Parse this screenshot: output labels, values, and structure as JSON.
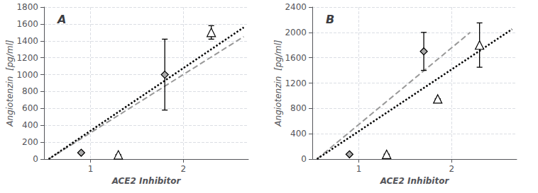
{
  "chart_data": [
    {
      "type": "scatter",
      "annotation": "A",
      "xlabel": "ACE2 Inhibitor",
      "ylabel": "Angiotenzin  [pg/ml]",
      "xlim": [
        0.5,
        2.7
      ],
      "xticks": [
        1,
        2
      ],
      "ylim": [
        0,
        1800
      ],
      "yticks": [
        0,
        200,
        400,
        600,
        800,
        1000,
        1200,
        1400,
        1600,
        1800
      ],
      "grid": true,
      "series": [
        {
          "type": "line",
          "color": "#999999",
          "line_style": "dashed",
          "x": [
            0.55,
            2.65
          ],
          "values": [
            0,
            1450
          ]
        },
        {
          "type": "line",
          "color": "#000000",
          "line_style": "dotted",
          "x": [
            0.55,
            2.65
          ],
          "values": [
            0,
            1560
          ]
        },
        {
          "type": "scatter",
          "marker": "diamond",
          "color": "#aaaaaa",
          "x": [
            0.9,
            1.8
          ],
          "values": [
            75,
            1000
          ],
          "yerr": [
            0,
            420
          ]
        },
        {
          "type": "scatter",
          "marker": "triangle",
          "color": "#ffffff",
          "x": [
            1.3,
            2.3
          ],
          "values": [
            50,
            1500
          ],
          "yerr": [
            0,
            80
          ]
        }
      ]
    },
    {
      "type": "scatter",
      "annotation": "B",
      "xlabel": "ACE2 Inhibitor",
      "ylabel": "Angiotenzin  [pg/ml]",
      "xlim": [
        0.5,
        2.7
      ],
      "xticks": [
        1,
        2
      ],
      "ylim": [
        0,
        2400
      ],
      "yticks": [
        0,
        400,
        800,
        1200,
        1600,
        2000,
        2400
      ],
      "grid": true,
      "series": [
        {
          "type": "line",
          "color": "#999999",
          "line_style": "dashed",
          "x": [
            0.55,
            2.2
          ],
          "values": [
            0,
            2000
          ]
        },
        {
          "type": "line",
          "color": "#000000",
          "line_style": "dotted",
          "x": [
            0.55,
            2.65
          ],
          "values": [
            0,
            2050
          ]
        },
        {
          "type": "scatter",
          "marker": "diamond",
          "color": "#aaaaaa",
          "x": [
            0.9,
            1.7
          ],
          "values": [
            75,
            1700
          ],
          "yerr": [
            0,
            300
          ]
        },
        {
          "type": "scatter",
          "marker": "triangle",
          "color": "#ffffff",
          "x": [
            1.3,
            1.85,
            2.3
          ],
          "values": [
            75,
            950,
            1800
          ],
          "yerr": [
            0,
            0,
            350
          ]
        }
      ]
    }
  ]
}
